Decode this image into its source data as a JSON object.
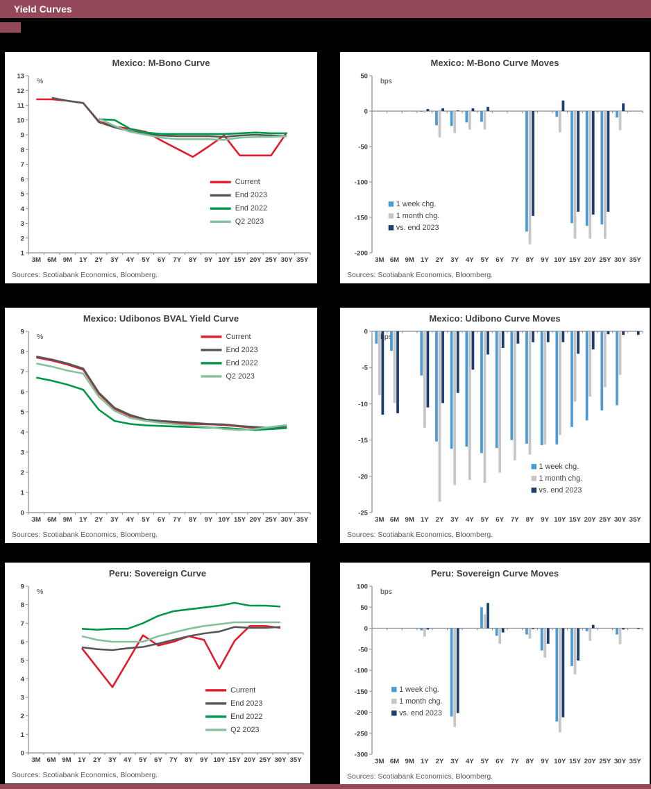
{
  "page": {
    "header_title": "Yield Curves",
    "sources_label": "Sources: Scotiabank Economics, Bloomberg.",
    "colors": {
      "header_bg": "#94485a",
      "panel_bg": "#ffffff",
      "page_bg": "#000000",
      "axis": "#8a8c8f",
      "text": "#404040",
      "current": "#e51a2c",
      "end2023": "#575757",
      "end2022": "#009749",
      "q2_2023": "#86c19e",
      "week": "#4e9bd4",
      "month": "#c5c6c8",
      "vs2023": "#1d3d6d"
    }
  },
  "categories": [
    "3M",
    "6M",
    "9M",
    "1Y",
    "2Y",
    "3Y",
    "4Y",
    "5Y",
    "6Y",
    "7Y",
    "8Y",
    "9Y",
    "10Y",
    "15Y",
    "20Y",
    "25Y",
    "30Y",
    "35Y"
  ],
  "chart_data": [
    {
      "id": "mexico-mbono-curve",
      "type": "line",
      "title": "Mexico: M-Bono Curve",
      "unit": "%",
      "xlabel": "",
      "ylabel": "%",
      "ylim": [
        1,
        13
      ],
      "yticks": [
        13,
        12,
        11,
        10,
        9,
        8,
        7,
        6,
        5,
        4,
        3,
        2,
        1
      ],
      "grid": false,
      "legend_position": "bottom-right",
      "legend": {
        "x": 0.66,
        "y": 0.58
      },
      "series": [
        {
          "name": "Current",
          "color_key": "current",
          "values": [
            11.4,
            11.4,
            11.3,
            11.15,
            9.9,
            9.55,
            9.4,
            9.2,
            8.6,
            8.05,
            7.5,
            8.2,
            8.95,
            7.6,
            7.6,
            7.6,
            9.15,
            null
          ]
        },
        {
          "name": "End 2023",
          "color_key": "end2023",
          "values": [
            null,
            11.5,
            11.3,
            11.15,
            9.85,
            9.5,
            9.25,
            9.05,
            8.95,
            8.9,
            8.9,
            8.9,
            8.85,
            8.95,
            9.0,
            8.95,
            8.9,
            null
          ]
        },
        {
          "name": "End 2022",
          "color_key": "end2022",
          "values": [
            null,
            null,
            null,
            null,
            10.05,
            10.0,
            9.4,
            9.15,
            9.05,
            9.05,
            9.05,
            9.05,
            9.05,
            9.1,
            9.15,
            9.1,
            9.1,
            null
          ]
        },
        {
          "name": "Q2 2023",
          "color_key": "q2_2023",
          "values": [
            null,
            null,
            null,
            null,
            10.1,
            9.6,
            9.2,
            9.0,
            8.8,
            8.7,
            8.7,
            8.7,
            8.65,
            8.8,
            8.85,
            8.85,
            8.9,
            null
          ]
        }
      ]
    },
    {
      "id": "mexico-mbono-curve-moves",
      "type": "bar",
      "title": "Mexico: M-Bono Curve Moves",
      "unit": "bps",
      "xlabel": "",
      "ylabel": "bps",
      "ylim": [
        -200,
        50
      ],
      "yticks": [
        50,
        0,
        -50,
        -100,
        -150,
        -200
      ],
      "grid": false,
      "legend_position": "bottom-left",
      "legend": {
        "x": 0.15,
        "y": 0.7
      },
      "series": [
        {
          "name": "1 week chg.",
          "color_key": "week",
          "values": [
            0,
            0,
            0,
            -1,
            -20,
            -21,
            -16,
            -15,
            0,
            0,
            -170,
            0,
            -8,
            -158,
            -162,
            -160,
            -9,
            0
          ]
        },
        {
          "name": "1 month chg.",
          "color_key": "month",
          "values": [
            0,
            0,
            -1,
            -2,
            -37,
            -31,
            -26,
            -26,
            0,
            0,
            -188,
            0,
            -30,
            -180,
            -180,
            -180,
            -27,
            0
          ]
        },
        {
          "name": "vs. end 2023",
          "color_key": "vs2023",
          "values": [
            0,
            0,
            0,
            3,
            4,
            1,
            4,
            6,
            0,
            0,
            -148,
            0,
            15,
            -142,
            -146,
            -142,
            11,
            0
          ]
        }
      ]
    },
    {
      "id": "mexico-udibonos-bval-yield-curve",
      "type": "line",
      "title": "Mexico: Udibonos BVAL Yield Curve",
      "unit": "%",
      "xlabel": "",
      "ylabel": "%",
      "ylim": [
        0,
        9
      ],
      "yticks": [
        9,
        8,
        7,
        6,
        5,
        4,
        3,
        2,
        1,
        0
      ],
      "grid": false,
      "legend_position": "top-right",
      "legend": {
        "x": 0.63,
        "y": 0.065
      },
      "series": [
        {
          "name": "Current",
          "color_key": "current",
          "values": [
            7.7,
            7.55,
            7.35,
            7.1,
            5.9,
            5.15,
            4.8,
            4.6,
            4.5,
            4.45,
            4.4,
            4.38,
            4.35,
            4.28,
            4.2,
            4.15,
            4.2,
            null
          ]
        },
        {
          "name": "End 2023",
          "color_key": "end2023",
          "values": [
            7.75,
            7.6,
            7.4,
            7.15,
            5.95,
            5.2,
            4.85,
            4.62,
            4.55,
            4.5,
            4.45,
            4.4,
            4.38,
            4.3,
            4.25,
            4.2,
            4.25,
            null
          ]
        },
        {
          "name": "End 2022",
          "color_key": "end2022",
          "values": [
            6.7,
            6.55,
            6.35,
            6.1,
            5.1,
            4.55,
            4.4,
            4.33,
            4.3,
            4.27,
            4.25,
            4.22,
            4.2,
            4.15,
            4.1,
            4.15,
            4.2,
            null
          ]
        },
        {
          "name": "Q2 2023",
          "color_key": "q2_2023",
          "values": [
            7.4,
            7.25,
            7.05,
            6.9,
            5.75,
            5.05,
            4.7,
            4.55,
            4.45,
            4.38,
            4.3,
            4.25,
            4.15,
            4.1,
            4.15,
            4.25,
            4.35,
            null
          ]
        }
      ]
    },
    {
      "id": "mexico-udibono-curve-moves",
      "type": "bar",
      "title": "Mexico: Udibono Curve Moves",
      "unit": "bps",
      "xlabel": "",
      "ylabel": "bps",
      "ylim": [
        -25,
        0
      ],
      "yticks": [
        0,
        -5,
        -10,
        -15,
        -20,
        -25
      ],
      "grid": false,
      "legend_position": "bottom-right",
      "legend": {
        "x": 0.62,
        "y": 0.72
      },
      "series": [
        {
          "name": "1 week chg.",
          "color_key": "week",
          "values": [
            -1.7,
            -2.7,
            null,
            -6.1,
            -15.2,
            -16.2,
            -15.9,
            -16.8,
            -16.1,
            -15.0,
            -15.5,
            -15.7,
            -15.6,
            -13.2,
            -12.3,
            -10.9,
            -10.2,
            null
          ]
        },
        {
          "name": "1 month chg.",
          "color_key": "month",
          "values": [
            -8.8,
            -9.9,
            null,
            -13.3,
            -23.5,
            -21.2,
            -20.5,
            -20.9,
            -19.5,
            -17.8,
            -17.0,
            -15.6,
            -14.3,
            -9.7,
            -9.0,
            -7.7,
            -6.0,
            null
          ]
        },
        {
          "name": "vs. end 2023",
          "color_key": "vs2023",
          "values": [
            -11.5,
            -11.3,
            null,
            -10.5,
            -9.9,
            -8.5,
            -5.3,
            -3.2,
            -2.3,
            -1.7,
            -1.5,
            -1.5,
            -1.5,
            -3.1,
            -2.5,
            -0.4,
            -0.5,
            -0.5
          ]
        }
      ]
    },
    {
      "id": "peru-sovereign-curve",
      "type": "line",
      "title": "Peru: Sovereign Curve",
      "unit": "%",
      "xlabel": "",
      "ylabel": "%",
      "ylim": [
        0,
        9
      ],
      "yticks": [
        9,
        8,
        7,
        6,
        5,
        4,
        3,
        2,
        1,
        0
      ],
      "grid": false,
      "legend_position": "bottom-right",
      "legend": {
        "x": 0.66,
        "y": 0.6
      },
      "series": [
        {
          "name": "Current",
          "color_key": "current",
          "values": [
            null,
            null,
            null,
            5.65,
            4.6,
            3.55,
            4.95,
            6.35,
            5.8,
            6.0,
            6.3,
            6.1,
            4.55,
            6.05,
            6.85,
            6.85,
            6.75,
            null
          ]
        },
        {
          "name": "End 2023",
          "color_key": "end2023",
          "values": [
            null,
            null,
            null,
            5.7,
            5.6,
            5.55,
            5.65,
            5.72,
            5.9,
            6.1,
            6.3,
            6.45,
            6.55,
            6.8,
            6.75,
            6.75,
            6.8,
            null
          ]
        },
        {
          "name": "End 2022",
          "color_key": "end2022",
          "values": [
            null,
            null,
            null,
            6.7,
            6.65,
            6.7,
            6.7,
            7.0,
            7.4,
            7.65,
            7.75,
            7.85,
            7.95,
            8.1,
            7.95,
            7.95,
            7.9,
            null
          ]
        },
        {
          "name": "Q2 2023",
          "color_key": "q2_2023",
          "values": [
            null,
            null,
            null,
            6.3,
            6.1,
            6.0,
            6.0,
            6.0,
            6.3,
            6.5,
            6.7,
            6.85,
            6.95,
            7.05,
            7.05,
            7.05,
            7.05,
            null
          ]
        }
      ]
    },
    {
      "id": "peru-sovereign-curve-moves",
      "type": "bar",
      "title": "Peru: Sovereign Curve Moves",
      "unit": "bps",
      "xlabel": "",
      "ylabel": "bps",
      "ylim": [
        -300,
        100
      ],
      "yticks": [
        100,
        50,
        0,
        -50,
        -100,
        -150,
        -200,
        -250,
        -300
      ],
      "grid": false,
      "legend_position": "bottom-left",
      "legend": {
        "x": 0.16,
        "y": 0.6
      },
      "series": [
        {
          "name": "1 week chg.",
          "color_key": "week",
          "values": [
            0,
            0,
            0,
            -5,
            0,
            -210,
            0,
            50,
            -18,
            0,
            -15,
            -53,
            -222,
            -90,
            -7,
            0,
            -15,
            0
          ]
        },
        {
          "name": "1 month chg.",
          "color_key": "month",
          "values": [
            0,
            0,
            0,
            -20,
            0,
            -235,
            0,
            33,
            -37,
            0,
            -25,
            -70,
            -248,
            -110,
            -30,
            0,
            -38,
            0
          ]
        },
        {
          "name": "vs. end 2023",
          "color_key": "vs2023",
          "values": [
            0,
            0,
            0,
            -3,
            0,
            -202,
            0,
            60,
            -10,
            0,
            -2,
            -37,
            -212,
            -77,
            8,
            0,
            -3,
            -2
          ]
        }
      ]
    }
  ]
}
